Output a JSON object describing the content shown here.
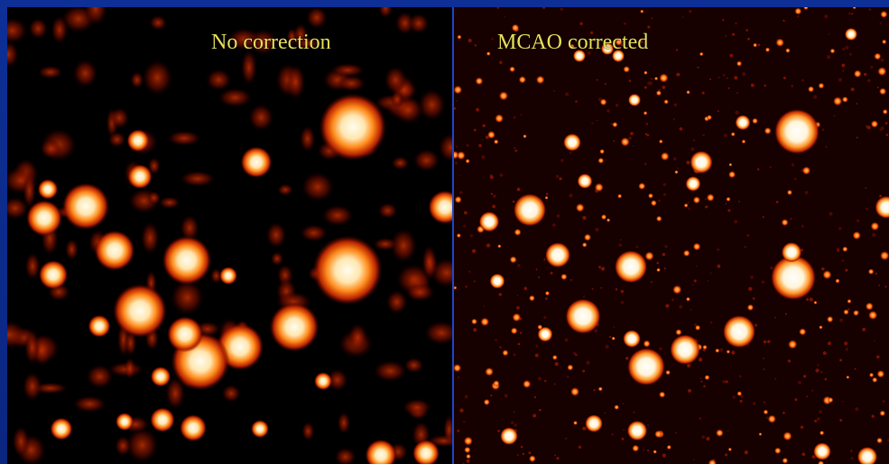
{
  "left_panel": {
    "caption": "No correction"
  },
  "right_panel": {
    "caption": "MCAO corrected"
  },
  "colors": {
    "frame": "#0b2a8c",
    "caption": "#e8e05a",
    "star_core": "#fffbe8",
    "star_glow": "#ff6a00",
    "background_noise": "#5a0a00"
  }
}
